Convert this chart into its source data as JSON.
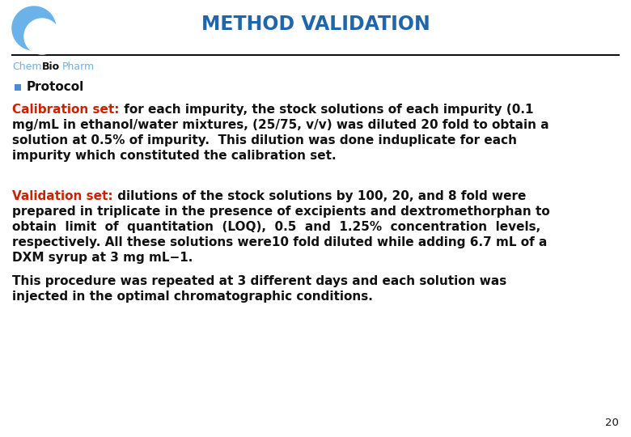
{
  "title": "METHOD VALIDATION",
  "title_color": "#2266aa",
  "title_fontsize": 17,
  "logo_color": "#6ab2e8",
  "brand_color_chem": "#6ab2e8",
  "brand_color_bio": "#111111",
  "brand_color_pharm": "#6ab2e8",
  "bullet_color": "#4a8fcc",
  "bullet_text": "Protocol",
  "calib_label": "Calibration set:",
  "calib_label_color": "#cc2200",
  "calib_lines": [
    [
      "red",
      "Calibration set:",
      "black",
      " for each impurity, the stock solutions of each impurity (0.1"
    ],
    [
      "black",
      "mg/mL in ethanol/water mixtures, (25/75, v/v) was diluted 20 fold to obtain a"
    ],
    [
      "black",
      "solution at 0.5% of impurity.  This dilution was done induplicate for each"
    ],
    [
      "black",
      "impurity which constituted the calibration set."
    ]
  ],
  "valid_lines": [
    [
      "red",
      "Validation set:",
      "black",
      " dilutions of the stock solutions by 100, 20, and 8 fold were"
    ],
    [
      "black",
      "prepared in triplicate in the presence of excipients and dextromethorphan to"
    ],
    [
      "black",
      "obtain  limit  of  quantitation  (LOQ),  0.5  and  1.25%  concentration  levels,"
    ],
    [
      "black",
      "respectively. All these solutions were10 fold diluted while adding 6.7 mL of a"
    ],
    [
      "black",
      "DXM syrup at 3 mg mL−1."
    ]
  ],
  "final_lines": [
    "This procedure was repeated at 3 different days and each solution was",
    "injected in the optimal chromatographic conditions."
  ],
  "page_number": "20",
  "body_color": "#111111",
  "body_fontsize": 11.0,
  "line_color": "#111111",
  "background_color": "#ffffff",
  "fig_w": 7.8,
  "fig_h": 5.4,
  "dpi": 100
}
